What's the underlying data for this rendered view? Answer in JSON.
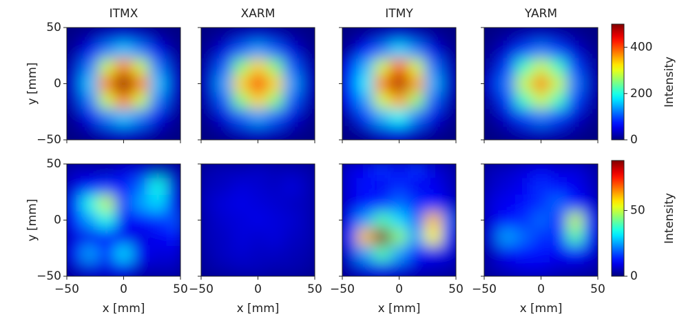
{
  "chart_data": [
    {
      "type": "heatmap",
      "title": "ITMX",
      "cmap": "jet",
      "zlim": [
        0,
        500
      ],
      "x": [
        -45,
        -30,
        -15,
        0,
        15,
        30,
        45
      ],
      "y": [
        45,
        30,
        15,
        0,
        -15,
        -30,
        -45
      ],
      "z": [
        [
          3,
          13,
          30,
          40,
          30,
          13,
          3
        ],
        [
          13,
          53,
          123,
          160,
          123,
          53,
          13
        ],
        [
          30,
          123,
          285,
          378,
          285,
          123,
          30
        ],
        [
          40,
          160,
          378,
          500,
          378,
          160,
          40
        ],
        [
          30,
          123,
          285,
          378,
          285,
          123,
          30
        ],
        [
          13,
          53,
          123,
          160,
          123,
          53,
          13
        ],
        [
          3,
          13,
          30,
          40,
          30,
          13,
          3
        ]
      ],
      "xlim": [
        -50,
        50
      ],
      "ylim": [
        -50,
        50
      ],
      "xticks": [
        -50,
        0,
        50
      ],
      "yticks": [
        {
          "value": -50,
          "label": "−50"
        },
        0,
        50
      ],
      "show_xticklabels": false,
      "show_yticklabels": true,
      "ylabel": "y [mm]"
    },
    {
      "type": "heatmap",
      "title": "XARM",
      "cmap": "jet",
      "zlim": [
        0,
        500
      ],
      "x": [
        -45,
        -30,
        -15,
        0,
        15,
        30,
        45
      ],
      "y": [
        45,
        30,
        15,
        0,
        -15,
        -30,
        -45
      ],
      "z": [
        [
          3,
          11,
          26,
          35,
          26,
          11,
          3
        ],
        [
          11,
          46,
          108,
          141,
          108,
          46,
          11
        ],
        [
          26,
          108,
          251,
          332,
          251,
          108,
          26
        ],
        [
          35,
          141,
          332,
          440,
          332,
          141,
          35
        ],
        [
          26,
          108,
          251,
          332,
          251,
          108,
          26
        ],
        [
          11,
          46,
          108,
          141,
          108,
          46,
          11
        ],
        [
          3,
          11,
          26,
          35,
          26,
          11,
          3
        ]
      ],
      "xlim": [
        -50,
        50
      ],
      "ylim": [
        -50,
        50
      ],
      "xticks": [
        -50,
        0,
        50
      ],
      "yticks": [
        -50,
        0,
        50
      ],
      "show_xticklabels": false,
      "show_yticklabels": false
    },
    {
      "type": "heatmap",
      "title": "ITMY",
      "cmap": "jet",
      "zlim": [
        0,
        500
      ],
      "x": [
        -45,
        -30,
        -15,
        0,
        15,
        30,
        45
      ],
      "y": [
        45,
        30,
        15,
        0,
        -15,
        -30,
        -45
      ],
      "z": [
        [
          3,
          12,
          28,
          40,
          28,
          12,
          3
        ],
        [
          15,
          70,
          120,
          170,
          125,
          50,
          12
        ],
        [
          60,
          150,
          290,
          400,
          290,
          120,
          28
        ],
        [
          90,
          180,
          380,
          480,
          360,
          150,
          35
        ],
        [
          60,
          140,
          290,
          360,
          260,
          110,
          25
        ],
        [
          20,
          90,
          150,
          190,
          120,
          50,
          12
        ],
        [
          4,
          15,
          40,
          50,
          30,
          12,
          3
        ]
      ],
      "xlim": [
        -50,
        50
      ],
      "ylim": [
        -50,
        50
      ],
      "xticks": [
        -50,
        0,
        50
      ],
      "yticks": [
        -50,
        0,
        50
      ],
      "show_xticklabels": false,
      "show_yticklabels": false
    },
    {
      "type": "heatmap",
      "title": "YARM",
      "cmap": "jet",
      "zlim": [
        0,
        500
      ],
      "x": [
        -45,
        -30,
        -15,
        0,
        15,
        30,
        45
      ],
      "y": [
        45,
        30,
        15,
        0,
        -15,
        -30,
        -45
      ],
      "z": [
        [
          2,
          10,
          23,
          30,
          23,
          10,
          2
        ],
        [
          10,
          40,
          94,
          122,
          94,
          40,
          10
        ],
        [
          23,
          94,
          217,
          287,
          217,
          94,
          23
        ],
        [
          45,
          122,
          287,
          380,
          287,
          122,
          30
        ],
        [
          23,
          94,
          217,
          287,
          217,
          94,
          23
        ],
        [
          10,
          40,
          94,
          122,
          94,
          40,
          10
        ],
        [
          2,
          10,
          23,
          30,
          23,
          10,
          2
        ]
      ],
      "xlim": [
        -50,
        50
      ],
      "ylim": [
        -50,
        50
      ],
      "xticks": [
        -50,
        0,
        50
      ],
      "yticks": [
        -50,
        0,
        50
      ],
      "show_xticklabels": false,
      "show_yticklabels": false,
      "colorbar": {
        "label": "Intensity",
        "ticks": [
          0,
          200,
          400
        ]
      }
    },
    {
      "type": "heatmap",
      "cmap": "jet",
      "zlim": [
        0,
        88
      ],
      "x": [
        -45,
        -30,
        -15,
        0,
        15,
        30,
        45
      ],
      "y": [
        45,
        30,
        15,
        0,
        -15,
        -30,
        -45
      ],
      "z": [
        [
          5,
          5,
          5,
          8,
          8,
          5,
          5
        ],
        [
          8,
          12,
          15,
          12,
          20,
          35,
          8
        ],
        [
          15,
          35,
          50,
          15,
          25,
          30,
          10
        ],
        [
          12,
          25,
          35,
          10,
          12,
          15,
          18
        ],
        [
          8,
          10,
          12,
          10,
          8,
          10,
          12
        ],
        [
          10,
          25,
          15,
          30,
          10,
          8,
          8
        ],
        [
          5,
          8,
          8,
          10,
          5,
          5,
          5
        ]
      ],
      "xlim": [
        -50,
        50
      ],
      "ylim": [
        -50,
        50
      ],
      "xticks": [
        {
          "value": -50,
          "label": "−50"
        },
        0,
        50
      ],
      "yticks": [
        {
          "value": -50,
          "label": "−50"
        },
        0,
        50
      ],
      "show_xticklabels": true,
      "show_yticklabels": true,
      "xlabel": "x [mm]",
      "ylabel": "y [mm]"
    },
    {
      "type": "heatmap",
      "cmap": "jet",
      "zlim": [
        0,
        88
      ],
      "x": [
        -45,
        -30,
        -15,
        0,
        15,
        30,
        45
      ],
      "y": [
        45,
        30,
        15,
        0,
        -15,
        -30,
        -45
      ],
      "z": [
        [
          4,
          5,
          5,
          6,
          5,
          5,
          4
        ],
        [
          5,
          6,
          8,
          7,
          6,
          8,
          5
        ],
        [
          6,
          8,
          9,
          8,
          7,
          6,
          5
        ],
        [
          5,
          7,
          8,
          9,
          8,
          7,
          5
        ],
        [
          5,
          6,
          8,
          7,
          8,
          6,
          5
        ],
        [
          4,
          6,
          7,
          6,
          6,
          5,
          4
        ],
        [
          3,
          4,
          5,
          5,
          4,
          4,
          3
        ]
      ],
      "xlim": [
        -50,
        50
      ],
      "ylim": [
        -50,
        50
      ],
      "xticks": [
        {
          "value": -50,
          "label": "−50"
        },
        0,
        50
      ],
      "yticks": [
        -50,
        0,
        50
      ],
      "show_xticklabels": true,
      "show_yticklabels": false,
      "xlabel": "x [mm]"
    },
    {
      "type": "heatmap",
      "cmap": "jet",
      "zlim": [
        0,
        88
      ],
      "x": [
        -45,
        -30,
        -15,
        0,
        15,
        30,
        45
      ],
      "y": [
        45,
        30,
        15,
        0,
        -15,
        -30,
        -45
      ],
      "z": [
        [
          8,
          10,
          15,
          10,
          15,
          8,
          5
        ],
        [
          8,
          12,
          10,
          15,
          10,
          10,
          6
        ],
        [
          8,
          12,
          15,
          20,
          15,
          12,
          8
        ],
        [
          10,
          25,
          40,
          30,
          20,
          60,
          20
        ],
        [
          15,
          60,
          88,
          45,
          25,
          55,
          15
        ],
        [
          8,
          25,
          40,
          25,
          12,
          10,
          8
        ],
        [
          4,
          8,
          10,
          8,
          6,
          5,
          4
        ]
      ],
      "xlim": [
        -50,
        50
      ],
      "ylim": [
        -50,
        50
      ],
      "xticks": [
        {
          "value": -50,
          "label": "−50"
        },
        0,
        50
      ],
      "yticks": [
        -50,
        0,
        50
      ],
      "show_xticklabels": true,
      "show_yticklabels": false,
      "xlabel": "x [mm]"
    },
    {
      "type": "heatmap",
      "cmap": "jet",
      "zlim": [
        0,
        88
      ],
      "x": [
        -45,
        -30,
        -15,
        0,
        15,
        30,
        45
      ],
      "y": [
        45,
        30,
        15,
        0,
        -15,
        -30,
        -45
      ],
      "z": [
        [
          5,
          6,
          8,
          10,
          8,
          8,
          5
        ],
        [
          6,
          8,
          10,
          15,
          12,
          10,
          6
        ],
        [
          8,
          10,
          12,
          15,
          20,
          12,
          8
        ],
        [
          8,
          12,
          15,
          20,
          15,
          50,
          15
        ],
        [
          8,
          25,
          20,
          15,
          15,
          40,
          12
        ],
        [
          5,
          10,
          12,
          12,
          10,
          12,
          8
        ],
        [
          4,
          6,
          8,
          8,
          6,
          5,
          4
        ]
      ],
      "xlim": [
        -50,
        50
      ],
      "ylim": [
        -50,
        50
      ],
      "xticks": [
        {
          "value": -50,
          "label": "−50"
        },
        0,
        50
      ],
      "yticks": [
        -50,
        0,
        50
      ],
      "show_xticklabels": true,
      "show_yticklabels": false,
      "xlabel": "x [mm]",
      "colorbar": {
        "label": "Intensity",
        "ticks": [
          0,
          50
        ]
      }
    }
  ]
}
